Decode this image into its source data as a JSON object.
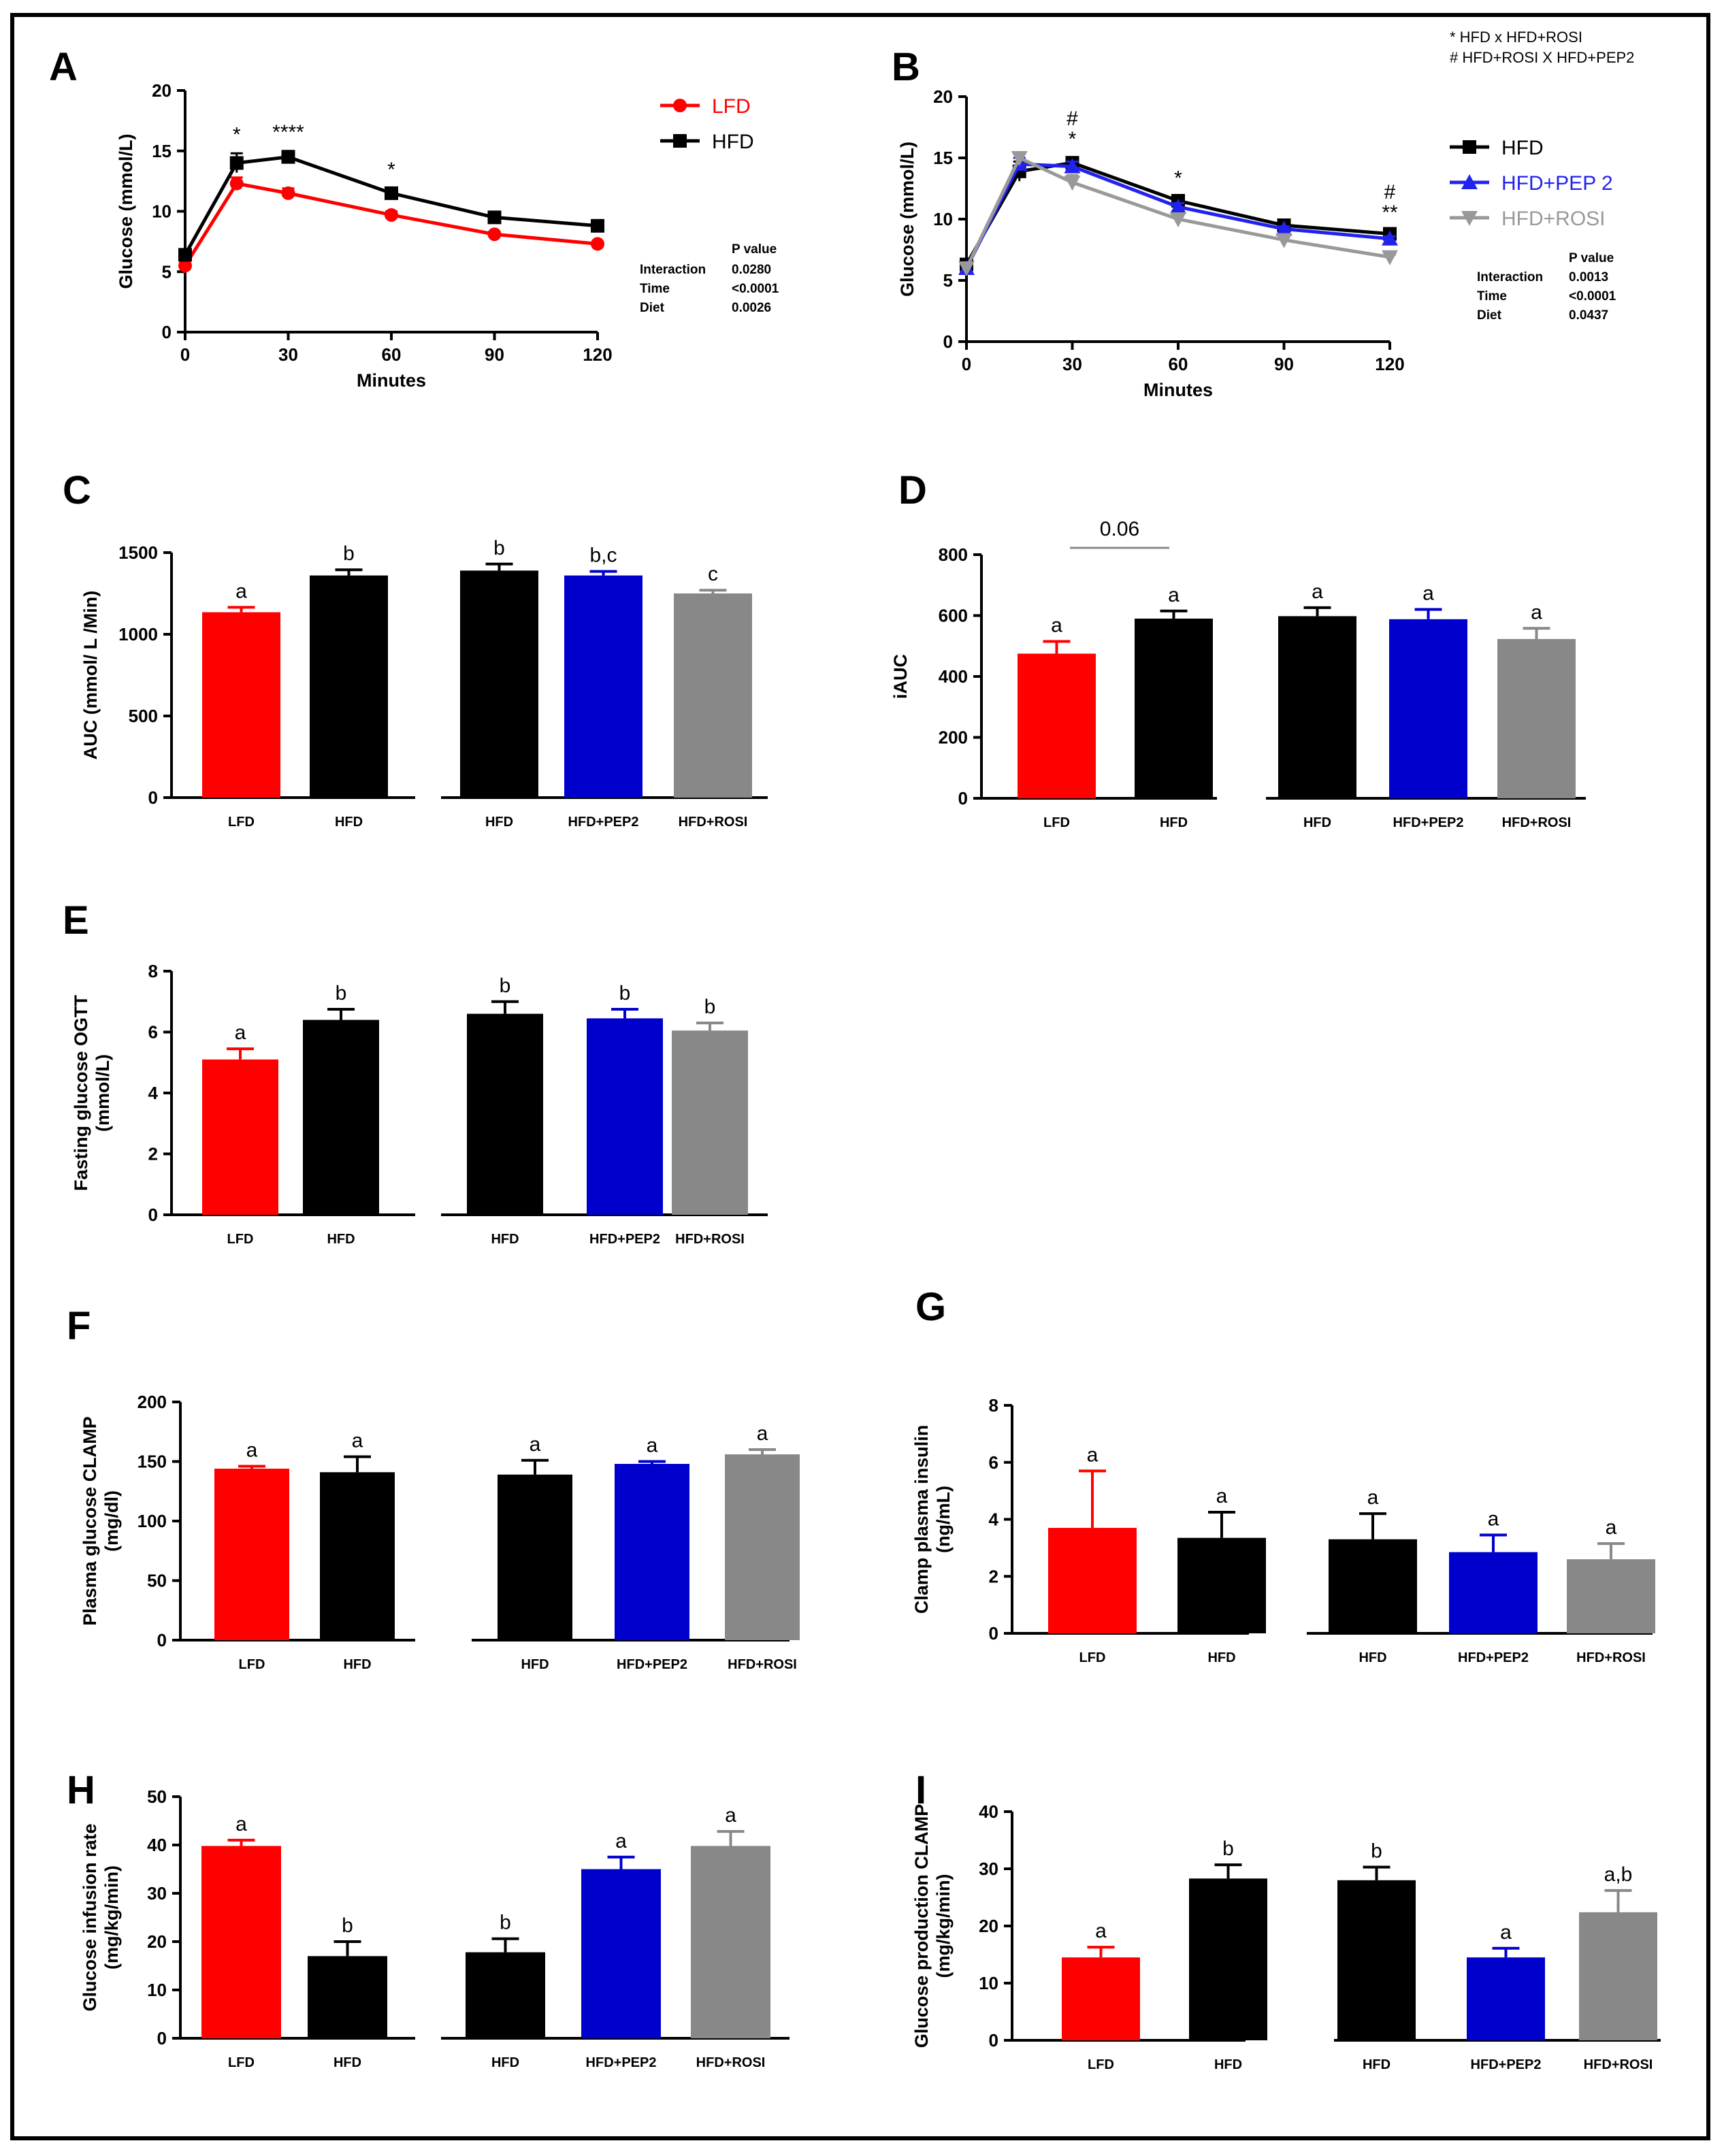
{
  "panels": {
    "A": "A",
    "B": "B",
    "C": "C",
    "D": "D",
    "E": "E",
    "F": "F",
    "G": "G",
    "H": "H",
    "I": "I"
  },
  "colors": {
    "LFD": "#ff0000",
    "HFD": "#000000",
    "HFD+PEP2": "#0000cc",
    "HFD+ROSI": "#888888",
    "line_PEP2": "#2222ee",
    "line_ROSI": "#999999"
  },
  "chart_data": [
    {
      "panel": "A",
      "type": "line",
      "title": "",
      "xlabel": "Minutes",
      "ylabel": "Glucose (mmol/L)",
      "x": [
        0,
        15,
        30,
        60,
        90,
        120
      ],
      "xticks": [
        "0",
        "30",
        "60",
        "90",
        "120"
      ],
      "yticks": [
        "0",
        "5",
        "10",
        "15",
        "20"
      ],
      "xlim": [
        0,
        120
      ],
      "ylim": [
        0,
        20
      ],
      "series": [
        {
          "name": "LFD",
          "color_key": "LFD",
          "values": [
            5.5,
            12.3,
            11.5,
            9.7,
            8.1,
            7.3
          ],
          "err": [
            0.6,
            0.5,
            0.4,
            0.3,
            0.2,
            0.2
          ]
        },
        {
          "name": "HFD",
          "color_key": "HFD",
          "values": [
            6.4,
            14.0,
            14.5,
            11.5,
            9.5,
            8.8
          ],
          "err": [
            0.4,
            0.8,
            0.5,
            0.4,
            0.3,
            0.2
          ]
        }
      ],
      "annotations": [
        {
          "x": 15,
          "text": "*"
        },
        {
          "x": 30,
          "text": "****"
        },
        {
          "x": 60,
          "text": "*"
        }
      ],
      "pvalue_table": {
        "header": "P value",
        "rows": [
          {
            "label": "Interaction",
            "value": "0.0280"
          },
          {
            "label": "Time",
            "value": "<0.0001"
          },
          {
            "label": "Diet",
            "value": "0.0026"
          }
        ]
      }
    },
    {
      "panel": "B",
      "type": "line",
      "title": "",
      "xlabel": "Minutes",
      "ylabel": "Glucose (mmol/L)",
      "x": [
        0,
        15,
        30,
        60,
        90,
        120
      ],
      "xticks": [
        "0",
        "30",
        "60",
        "90",
        "120"
      ],
      "yticks": [
        "0",
        "5",
        "10",
        "15",
        "20"
      ],
      "xlim": [
        0,
        120
      ],
      "ylim": [
        0,
        20
      ],
      "series": [
        {
          "name": "HFD",
          "color_key": "HFD",
          "values": [
            6.3,
            13.9,
            14.6,
            11.5,
            9.5,
            8.8
          ],
          "err": [
            0.3,
            0.8,
            0.4,
            0.3,
            0.2,
            0.2
          ]
        },
        {
          "name": "HFD+PEP 2",
          "color_key": "line_PEP2",
          "values": [
            6.0,
            14.5,
            14.3,
            11.0,
            9.2,
            8.4
          ],
          "err": [
            0.3,
            0.5,
            0.4,
            0.3,
            0.2,
            0.2
          ]
        },
        {
          "name": "HFD+ROSI",
          "color_key": "line_ROSI",
          "values": [
            6.0,
            15.0,
            13.0,
            10.0,
            8.3,
            6.9
          ],
          "err": [
            0.3,
            0.4,
            0.6,
            0.3,
            0.2,
            0.2
          ]
        }
      ],
      "annotations": [
        {
          "x": 30,
          "text": "#"
        },
        {
          "x": 30,
          "text": "*"
        },
        {
          "x": 60,
          "text": "*"
        },
        {
          "x": 120,
          "text": "#"
        },
        {
          "x": 120,
          "text": "**"
        }
      ],
      "significance_key": [
        "* HFD x HFD+ROSI",
        "# HFD+ROSI X HFD+PEP2"
      ],
      "pvalue_table": {
        "header": "P value",
        "rows": [
          {
            "label": "Interaction",
            "value": "0.0013"
          },
          {
            "label": "Time",
            "value": "<0.0001"
          },
          {
            "label": "Diet",
            "value": "0.0437"
          }
        ]
      }
    },
    {
      "panel": "C",
      "type": "bar",
      "ylabel": "AUC (mmol/ L /Min)",
      "ylim": [
        0,
        1500
      ],
      "yticks": [
        "0",
        "500",
        "1000",
        "1500"
      ],
      "groups": [
        {
          "bars": [
            {
              "label": "LFD",
              "value": 1135,
              "err": 30,
              "sig": "a",
              "color_key": "LFD"
            },
            {
              "label": "HFD",
              "value": 1360,
              "err": 35,
              "sig": "b",
              "color_key": "HFD"
            }
          ]
        },
        {
          "bars": [
            {
              "label": "HFD",
              "value": 1390,
              "err": 40,
              "sig": "b",
              "color_key": "HFD"
            },
            {
              "label": "HFD+PEP2",
              "value": 1360,
              "err": 25,
              "sig": "b,c",
              "color_key": "HFD+PEP2"
            },
            {
              "label": "HFD+ROSI",
              "value": 1250,
              "err": 20,
              "sig": "c",
              "color_key": "HFD+ROSI"
            }
          ]
        }
      ]
    },
    {
      "panel": "D",
      "type": "bar",
      "ylabel": "iAUC",
      "ylim": [
        0,
        800
      ],
      "yticks": [
        "0",
        "200",
        "400",
        "600",
        "800"
      ],
      "bracket": {
        "text": "0.06"
      },
      "groups": [
        {
          "bars": [
            {
              "label": "LFD",
              "value": 475,
              "err": 40,
              "sig": "a",
              "color_key": "LFD"
            },
            {
              "label": "HFD",
              "value": 590,
              "err": 25,
              "sig": "a",
              "color_key": "HFD"
            }
          ]
        },
        {
          "bars": [
            {
              "label": "HFD",
              "value": 598,
              "err": 28,
              "sig": "a",
              "color_key": "HFD"
            },
            {
              "label": "HFD+PEP2",
              "value": 588,
              "err": 32,
              "sig": "a",
              "color_key": "HFD+PEP2"
            },
            {
              "label": "HFD+ROSI",
              "value": 523,
              "err": 35,
              "sig": "a",
              "color_key": "HFD+ROSI"
            }
          ]
        }
      ]
    },
    {
      "panel": "E",
      "type": "bar",
      "ylabel": [
        "Fasting glucose OGTT",
        "(mmol/L)"
      ],
      "ylim": [
        0,
        8
      ],
      "yticks": [
        "0",
        "2",
        "4",
        "6",
        "8"
      ],
      "groups": [
        {
          "bars": [
            {
              "label": "LFD",
              "value": 5.1,
              "err": 0.35,
              "sig": "a",
              "color_key": "LFD"
            },
            {
              "label": "HFD",
              "value": 6.4,
              "err": 0.35,
              "sig": "b",
              "color_key": "HFD"
            }
          ]
        },
        {
          "bars": [
            {
              "label": "HFD",
              "value": 6.6,
              "err": 0.4,
              "sig": "b",
              "color_key": "HFD"
            },
            {
              "label": "HFD+PEP2",
              "value": 6.45,
              "err": 0.3,
              "sig": "b",
              "color_key": "HFD+PEP2"
            },
            {
              "label": "HFD+ROSI",
              "value": 6.05,
              "err": 0.25,
              "sig": "b",
              "color_key": "HFD+ROSI"
            }
          ]
        }
      ]
    },
    {
      "panel": "F",
      "type": "bar",
      "ylabel": [
        "Plasma glucose CLAMP",
        "(mg/dl)"
      ],
      "ylim": [
        0,
        200
      ],
      "yticks": [
        "0",
        "50",
        "100",
        "150",
        "200"
      ],
      "groups": [
        {
          "bars": [
            {
              "label": "LFD",
              "value": 144,
              "err": 2,
              "sig": "a",
              "color_key": "LFD"
            },
            {
              "label": "HFD",
              "value": 141,
              "err": 13,
              "sig": "a",
              "color_key": "HFD"
            }
          ]
        },
        {
          "bars": [
            {
              "label": "HFD",
              "value": 139,
              "err": 12,
              "sig": "a",
              "color_key": "HFD"
            },
            {
              "label": "HFD+PEP2",
              "value": 148,
              "err": 2,
              "sig": "a",
              "color_key": "HFD+PEP2"
            },
            {
              "label": "HFD+ROSI",
              "value": 156,
              "err": 4,
              "sig": "a",
              "color_key": "HFD+ROSI"
            }
          ]
        }
      ]
    },
    {
      "panel": "G",
      "type": "bar",
      "ylabel": [
        "Clamp plasma insulin",
        "(ng/mL)"
      ],
      "ylim": [
        0,
        8
      ],
      "yticks": [
        "0",
        "2",
        "4",
        "6",
        "8"
      ],
      "groups": [
        {
          "bars": [
            {
              "label": "LFD",
              "value": 3.7,
              "err": 2.0,
              "sig": "a",
              "color_key": "LFD"
            },
            {
              "label": "HFD",
              "value": 3.35,
              "err": 0.9,
              "sig": "a",
              "color_key": "HFD"
            }
          ]
        },
        {
          "bars": [
            {
              "label": "HFD",
              "value": 3.3,
              "err": 0.9,
              "sig": "a",
              "color_key": "HFD"
            },
            {
              "label": "HFD+PEP2",
              "value": 2.85,
              "err": 0.6,
              "sig": "a",
              "color_key": "HFD+PEP2"
            },
            {
              "label": "HFD+ROSI",
              "value": 2.6,
              "err": 0.55,
              "sig": "a",
              "color_key": "HFD+ROSI"
            }
          ]
        }
      ]
    },
    {
      "panel": "H",
      "type": "bar",
      "ylabel": [
        "Glucose infusion rate",
        "(mg/kg/min)"
      ],
      "ylim": [
        0,
        50
      ],
      "yticks": [
        "0",
        "10",
        "20",
        "30",
        "40",
        "50"
      ],
      "groups": [
        {
          "bars": [
            {
              "label": "LFD",
              "value": 39.8,
              "err": 1.2,
              "sig": "a",
              "color_key": "LFD"
            },
            {
              "label": "HFD",
              "value": 17.0,
              "err": 3.0,
              "sig": "b",
              "color_key": "HFD"
            }
          ]
        },
        {
          "bars": [
            {
              "label": "HFD",
              "value": 17.8,
              "err": 2.8,
              "sig": "b",
              "color_key": "HFD"
            },
            {
              "label": "HFD+PEP2",
              "value": 35.0,
              "err": 2.5,
              "sig": "a",
              "color_key": "HFD+PEP2"
            },
            {
              "label": "HFD+ROSI",
              "value": 39.8,
              "err": 3.0,
              "sig": "a",
              "color_key": "HFD+ROSI"
            }
          ]
        }
      ]
    },
    {
      "panel": "I",
      "type": "bar",
      "ylabel": [
        "Glucose production CLAMP",
        "(mg/kg/min)"
      ],
      "ylim": [
        0,
        40
      ],
      "yticks": [
        "0",
        "10",
        "20",
        "30",
        "40"
      ],
      "groups": [
        {
          "bars": [
            {
              "label": "LFD",
              "value": 14.5,
              "err": 1.8,
              "sig": "a",
              "color_key": "LFD"
            },
            {
              "label": "HFD",
              "value": 28.3,
              "err": 2.4,
              "sig": "b",
              "color_key": "HFD"
            }
          ]
        },
        {
          "bars": [
            {
              "label": "HFD",
              "value": 28.0,
              "err": 2.3,
              "sig": "b",
              "color_key": "HFD"
            },
            {
              "label": "HFD+PEP2",
              "value": 14.5,
              "err": 1.6,
              "sig": "a",
              "color_key": "HFD+PEP2"
            },
            {
              "label": "HFD+ROSI",
              "value": 22.4,
              "err": 3.8,
              "sig": "a,b",
              "color_key": "HFD+ROSI"
            }
          ]
        }
      ]
    }
  ]
}
